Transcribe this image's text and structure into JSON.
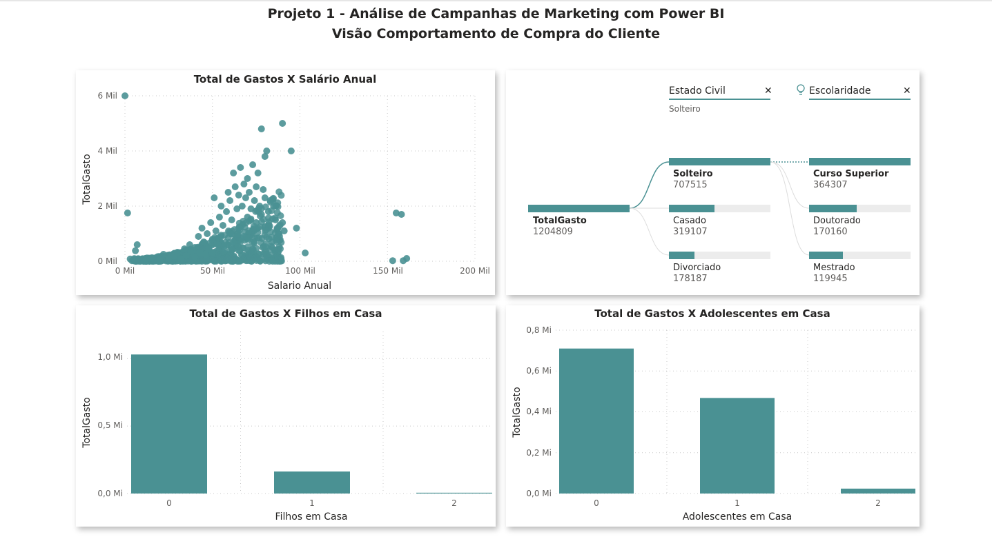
{
  "header": {
    "title_line1": "Projeto 1 - Análise de Campanhas de Marketing com Power BI",
    "title_line2": "Visão Comportamento de Compra do Cliente"
  },
  "colors": {
    "series": "#4a9193",
    "track": "#ececec"
  },
  "scatter_chart": {
    "title": "Total de Gastos X Salário Anual",
    "xlabel": "Salario Anual",
    "ylabel": "TotalGasto",
    "x_ticks": [
      "0 Mil",
      "50 Mil",
      "100 Mil",
      "150 Mil",
      "200 Mil"
    ],
    "y_ticks": [
      "0 Mil",
      "2 Mil",
      "4 Mil",
      "6 Mil"
    ]
  },
  "filhos_chart": {
    "title": "Total de Gastos X Filhos em Casa",
    "xlabel": "Filhos em Casa",
    "ylabel": "TotalGasto",
    "y_ticks": [
      "0,0 Mi",
      "0,5 Mi",
      "1,0 Mi"
    ]
  },
  "adolescentes_chart": {
    "title": "Total de Gastos X Adolescentes em Casa",
    "xlabel": "Adolescentes em Casa",
    "ylabel": "TotalGasto",
    "y_ticks": [
      "0,0 Mi",
      "0,2 Mi",
      "0,4 Mi",
      "0,6 Mi",
      "0,8 Mi"
    ]
  },
  "decomposition_tree": {
    "level1_header": "Estado Civil",
    "level1_selected": "Solteiro",
    "level2_header": "Escolaridade",
    "close_label": "✕",
    "root": {
      "label": "TotalGasto",
      "value": "1204809"
    },
    "level1": [
      {
        "label": "Solteiro",
        "value": "707515"
      },
      {
        "label": "Casado",
        "value": "319107"
      },
      {
        "label": "Divorciado",
        "value": "178187"
      }
    ],
    "level2": [
      {
        "label": "Curso Superior",
        "value": "364307"
      },
      {
        "label": "Doutorado",
        "value": "170160"
      },
      {
        "label": "Mestrado",
        "value": "119945"
      }
    ]
  },
  "chart_data": [
    {
      "type": "scatter",
      "title": "Total de Gastos X Salário Anual",
      "xlabel": "Salario Anual",
      "ylabel": "TotalGasto",
      "xlim": [
        0,
        200000
      ],
      "ylim": [
        0,
        6000
      ],
      "grid": true,
      "points": [
        [
          0,
          6000
        ],
        [
          1500,
          1750
        ],
        [
          3000,
          80
        ],
        [
          4000,
          20
        ],
        [
          6000,
          380
        ],
        [
          7000,
          600
        ],
        [
          12000,
          60
        ],
        [
          15000,
          120
        ],
        [
          20000,
          40
        ],
        [
          22000,
          250
        ],
        [
          25000,
          100
        ],
        [
          28000,
          180
        ],
        [
          30000,
          300
        ],
        [
          32000,
          90
        ],
        [
          34000,
          450
        ],
        [
          35000,
          200
        ],
        [
          37000,
          600
        ],
        [
          38000,
          350
        ],
        [
          40000,
          500
        ],
        [
          40000,
          150
        ],
        [
          42000,
          900
        ],
        [
          43000,
          300
        ],
        [
          44000,
          1200
        ],
        [
          45000,
          700
        ],
        [
          46000,
          250
        ],
        [
          47000,
          1000
        ],
        [
          48000,
          450
        ],
        [
          49000,
          1400
        ],
        [
          50000,
          800
        ],
        [
          50000,
          300
        ],
        [
          51000,
          2300
        ],
        [
          52000,
          1100
        ],
        [
          53000,
          600
        ],
        [
          54000,
          1600
        ],
        [
          55000,
          2000
        ],
        [
          55000,
          900
        ],
        [
          56000,
          1300
        ],
        [
          57000,
          400
        ],
        [
          58000,
          1800
        ],
        [
          59000,
          2500
        ],
        [
          60000,
          1000
        ],
        [
          60000,
          2200
        ],
        [
          61000,
          1500
        ],
        [
          62000,
          3200
        ],
        [
          62000,
          700
        ],
        [
          63000,
          2700
        ],
        [
          64000,
          1900
        ],
        [
          65000,
          2400
        ],
        [
          65000,
          1200
        ],
        [
          66000,
          3400
        ],
        [
          67000,
          2000
        ],
        [
          68000,
          2800
        ],
        [
          68000,
          900
        ],
        [
          69000,
          2300
        ],
        [
          70000,
          3000
        ],
        [
          70000,
          1600
        ],
        [
          71000,
          2500
        ],
        [
          72000,
          1900
        ],
        [
          73000,
          3500
        ],
        [
          74000,
          2200
        ],
        [
          75000,
          2700
        ],
        [
          75000,
          1400
        ],
        [
          76000,
          3200
        ],
        [
          77000,
          2000
        ],
        [
          78000,
          4800
        ],
        [
          78000,
          1700
        ],
        [
          79000,
          2600
        ],
        [
          80000,
          3800
        ],
        [
          80000,
          2300
        ],
        [
          81000,
          4000
        ],
        [
          82000,
          1800
        ],
        [
          83000,
          2200
        ],
        [
          84000,
          700
        ],
        [
          85000,
          2000
        ],
        [
          86000,
          1500
        ],
        [
          87000,
          1200
        ],
        [
          88000,
          1000
        ],
        [
          90000,
          1400
        ],
        [
          90000,
          5000
        ],
        [
          91000,
          1100
        ],
        [
          95000,
          4000
        ],
        [
          98000,
          1200
        ],
        [
          103000,
          300
        ],
        [
          153000,
          20
        ],
        [
          155000,
          1750
        ],
        [
          158000,
          1700
        ],
        [
          159000,
          20
        ],
        [
          161000,
          100
        ]
      ]
    },
    {
      "type": "bar",
      "title": "Total de Gastos X Filhos em Casa",
      "xlabel": "Filhos em Casa",
      "ylabel": "TotalGasto",
      "categories": [
        "0",
        "1",
        "2"
      ],
      "values": [
        1030000,
        163000,
        6000
      ],
      "ylim": [
        0,
        1200000
      ],
      "grid": true
    },
    {
      "type": "bar",
      "title": "Total de Gastos X Adolescentes em Casa",
      "xlabel": "Adolescentes em Casa",
      "ylabel": "TotalGasto",
      "categories": [
        "0",
        "1",
        "2"
      ],
      "values": [
        710000,
        468000,
        24000
      ],
      "ylim": [
        0,
        800000
      ],
      "grid": true
    }
  ]
}
